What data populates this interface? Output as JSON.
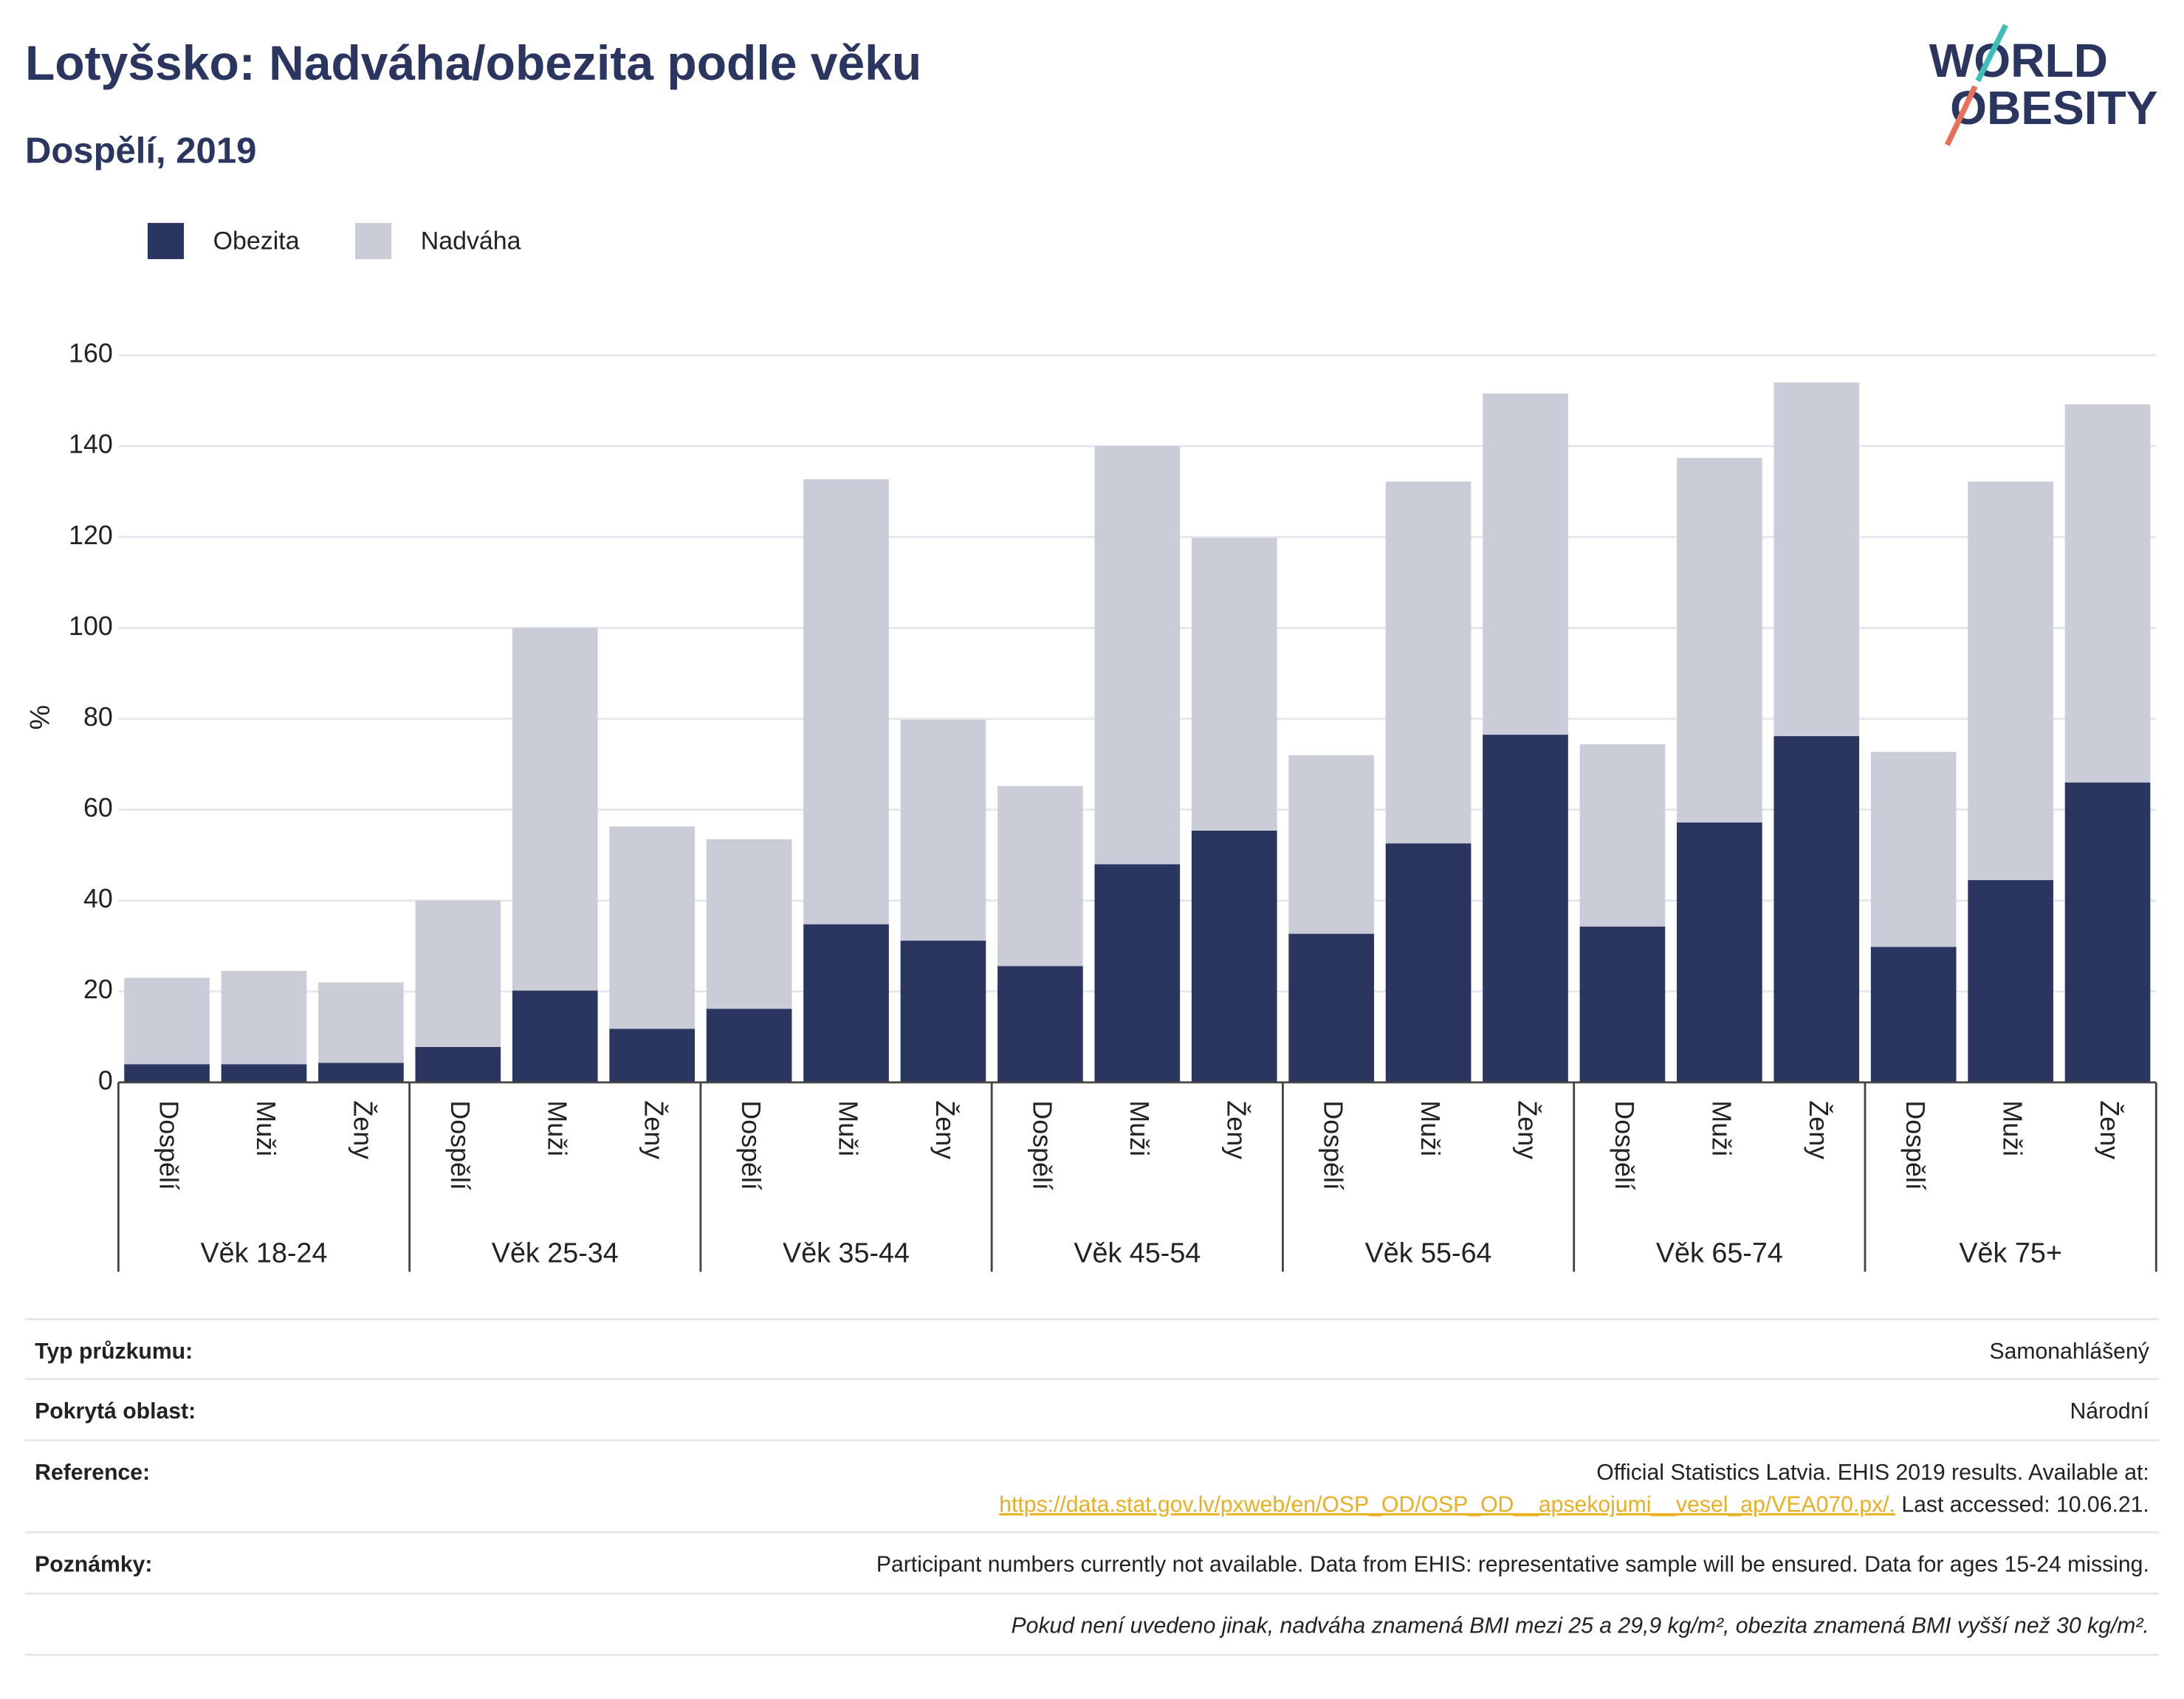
{
  "chart_data": {
    "type": "stacked_bar",
    "title": "Lotyšsko: Nadváha/obezita podle věku",
    "subtitle": "Dospělí, 2019",
    "y_label": "%",
    "groups": [
      {
        "name": "Věk 18-24",
        "categories": [
          "Dospělí",
          "Muži",
          "Ženy"
        ]
      },
      {
        "name": "Věk 25-34",
        "categories": [
          "Dospělí",
          "Muži",
          "Ženy"
        ]
      },
      {
        "name": "Věk 35-44",
        "categories": [
          "Dospělí",
          "Muži",
          "Ženy"
        ]
      },
      {
        "name": "Věk 45-54",
        "categories": [
          "Dospělí",
          "Muži",
          "Ženy"
        ]
      },
      {
        "name": "Věk 55-64",
        "categories": [
          "Dospělí",
          "Muži",
          "Ženy"
        ]
      },
      {
        "name": "Věk 65-74",
        "categories": [
          "Dospělí",
          "Muži",
          "Ženy"
        ]
      },
      {
        "name": "Věk 75+",
        "categories": [
          "Dospělí",
          "Muži",
          "Ženy"
        ]
      }
    ],
    "series": [
      {
        "name": "Obezita",
        "color": "#2a3560",
        "values": [
          4,
          4,
          4.3,
          7.8,
          20.2,
          11.8,
          16.2,
          34.8,
          31.2,
          25.6,
          48,
          55.4,
          32.7,
          52.6,
          76.5,
          34.3,
          57.2,
          76.2,
          29.8,
          44.5,
          66
        ]
      },
      {
        "name": "Nadváha",
        "color": "#caccd8",
        "values": [
          19,
          20.5,
          17.7,
          32.2,
          79.8,
          44.5,
          37.3,
          97.9,
          48.6,
          39.6,
          92,
          64.4,
          39.3,
          79.6,
          75.1,
          40.1,
          80.2,
          77.8,
          42.9,
          87.7,
          83.2
        ]
      }
    ],
    "ylim": [
      0,
      160
    ],
    "yticks": [
      0,
      20,
      40,
      60,
      80,
      100,
      120,
      140,
      160
    ],
    "grid": true,
    "legend": "top-left"
  },
  "logo": {
    "line1": "WORLD",
    "line2": "OBESITY"
  },
  "footer": {
    "rows": [
      {
        "label": "Typ průzkumu:",
        "value": "Samonahlášený"
      },
      {
        "label": "Pokrytá oblast:",
        "value": "Národní"
      },
      {
        "label": "Reference:",
        "value": "Official Statistics Latvia. EHIS 2019 results. Available at:",
        "link": "https://data.stat.gov.lv/pxweb/en/OSP_OD/OSP_OD__apsekojumi__vesel_ap/VEA070.px/.",
        "after": "Last accessed: 10.06.21."
      },
      {
        "label": "Poznámky:",
        "value": "Participant numbers currently not available. Data from EHIS: representative sample will be ensured. Data for ages 15-24 missing."
      }
    ],
    "note": "Pokud není uvedeno jinak, nadváha znamená BMI mezi 25 a 29,9 kg/m², obezita znamená BMI vyšší než 30 kg/m²."
  }
}
